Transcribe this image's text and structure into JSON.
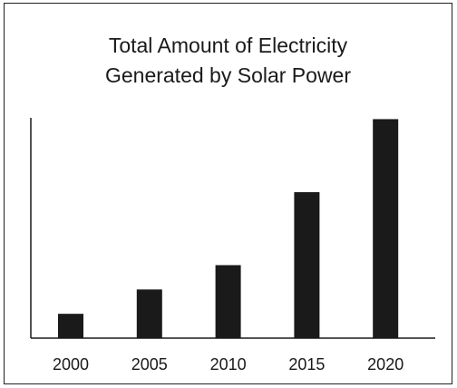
{
  "chart_data": {
    "type": "bar",
    "title_lines": [
      "Total Amount of Electricity",
      "Generated by Solar Power"
    ],
    "categories": [
      "2000",
      "2005",
      "2010",
      "2015",
      "2020"
    ],
    "values": [
      1,
      2,
      3,
      6,
      9
    ],
    "ylim": [
      0,
      9.5
    ],
    "xlabel": "",
    "ylabel": "",
    "bar_color": "#1a1a1a",
    "grid": false,
    "y_tick_labels_shown": false,
    "legend": "none"
  }
}
